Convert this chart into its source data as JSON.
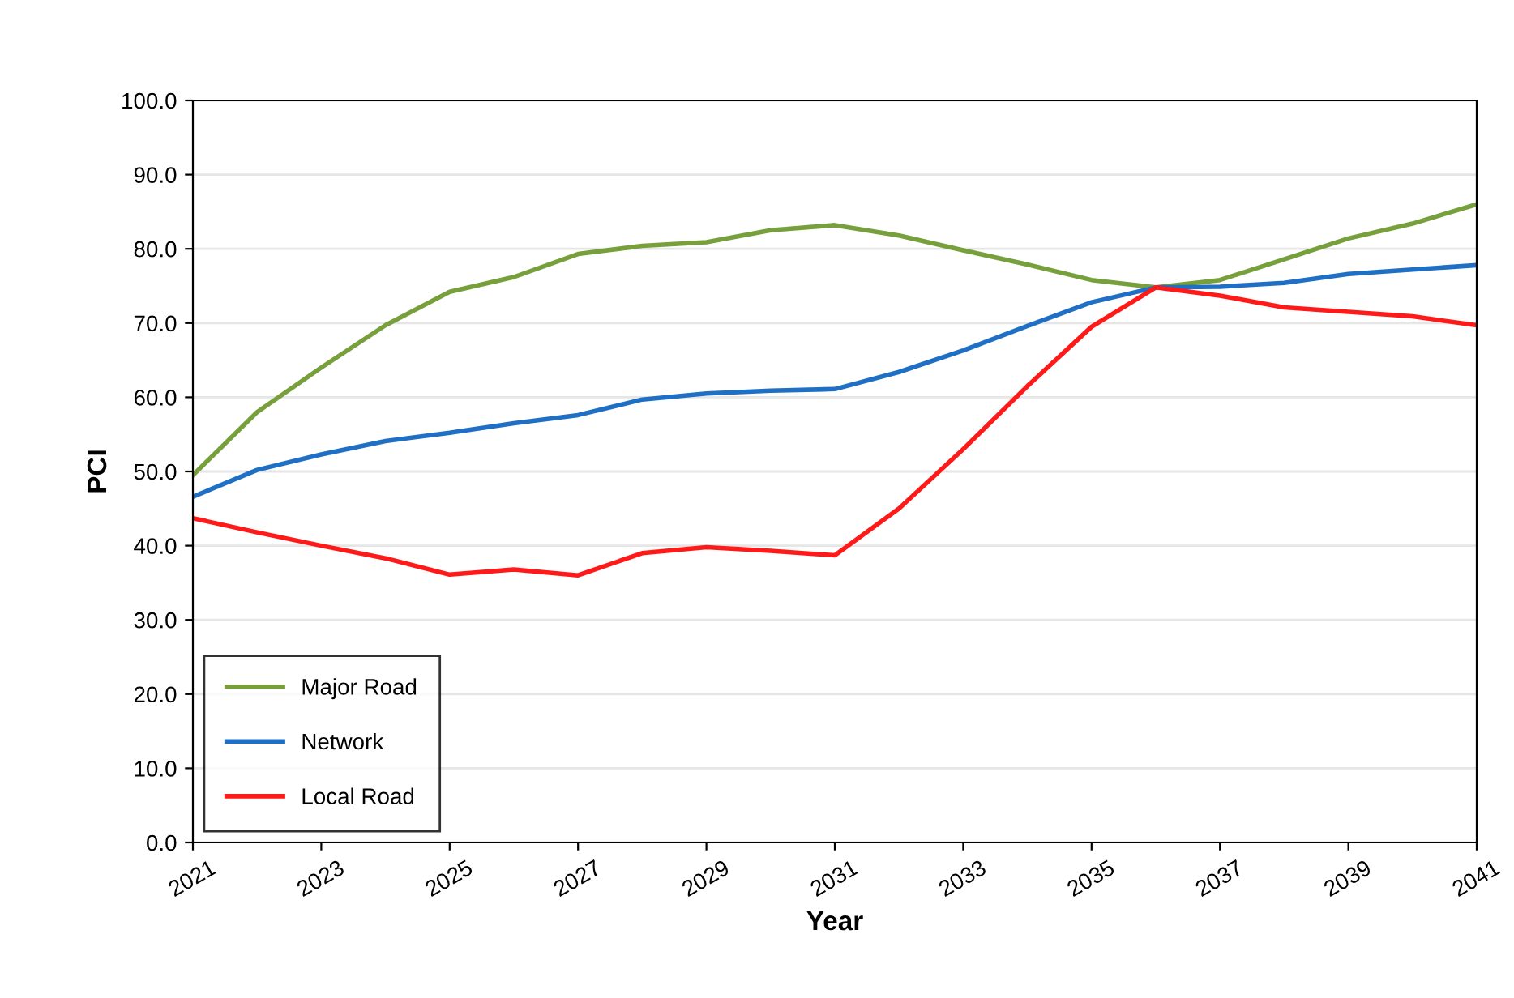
{
  "chart_data": {
    "type": "line",
    "xlabel": "Year",
    "ylabel": "PCI",
    "x": [
      2021,
      2022,
      2023,
      2024,
      2025,
      2026,
      2027,
      2028,
      2029,
      2030,
      2031,
      2032,
      2033,
      2034,
      2035,
      2036,
      2037,
      2038,
      2039,
      2040,
      2041
    ],
    "series": [
      {
        "name": "Major Road",
        "color": "#77a03c",
        "values": [
          49.5,
          58,
          64,
          69.7,
          74.2,
          76.2,
          79.3,
          80.4,
          80.9,
          82.5,
          83.2,
          81.8,
          79.8,
          77.9,
          75.8,
          74.8,
          75.8,
          78.6,
          81.4,
          83.4,
          86
        ]
      },
      {
        "name": "Network",
        "color": "#1f6fc5",
        "values": [
          46.6,
          50.2,
          52.3,
          54.1,
          55.2,
          56.5,
          57.6,
          59.7,
          60.5,
          60.9,
          61.1,
          63.4,
          66.3,
          69.6,
          72.8,
          74.8,
          74.9,
          75.4,
          76.6,
          77.2,
          77.8
        ]
      },
      {
        "name": "Local Road",
        "color": "#ff1a1a",
        "values": [
          43.7,
          41.8,
          40.0,
          38.3,
          36.1,
          36.8,
          36.0,
          39.0,
          39.8,
          39.3,
          38.7,
          45.0,
          53.0,
          61.5,
          69.5,
          74.8,
          73.7,
          72.1,
          71.5,
          70.9,
          69.7
        ]
      }
    ],
    "xlim": [
      2021,
      2041
    ],
    "xticks": [
      2021,
      2023,
      2025,
      2027,
      2029,
      2031,
      2033,
      2035,
      2037,
      2039,
      2041
    ],
    "ylim": [
      0,
      100
    ],
    "yticks": [
      {
        "value": 0,
        "label": "0.0"
      },
      {
        "value": 10,
        "label": "10.0"
      },
      {
        "value": 20,
        "label": "20.0"
      },
      {
        "value": 30,
        "label": "30.0"
      },
      {
        "value": 40,
        "label": "40.0"
      },
      {
        "value": 50,
        "label": "50.0"
      },
      {
        "value": 60,
        "label": "60.0"
      },
      {
        "value": 70,
        "label": "70.0"
      },
      {
        "value": 80,
        "label": "80.0"
      },
      {
        "value": 90,
        "label": "90.0"
      },
      {
        "value": 100,
        "label": "100.0"
      }
    ],
    "grid": "y",
    "legend": "bottom left",
    "marker": "none",
    "line_style": "solid"
  }
}
